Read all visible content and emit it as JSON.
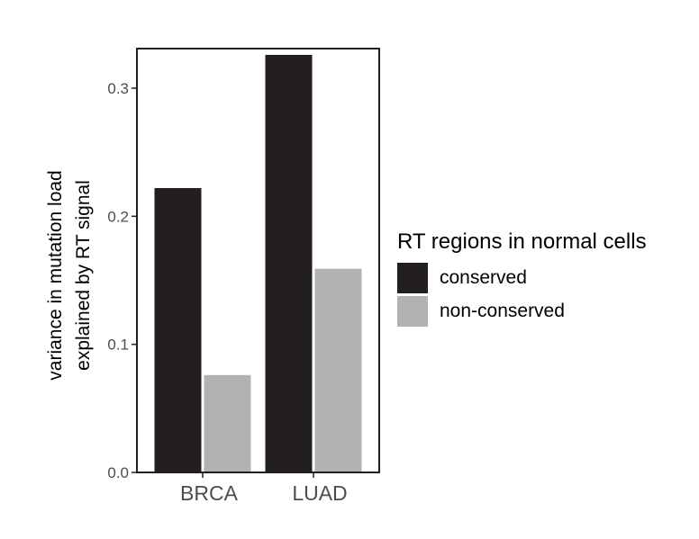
{
  "chart_data": {
    "type": "bar",
    "categories": [
      "BRCA",
      "LUAD"
    ],
    "series": [
      {
        "name": "conserved",
        "values": [
          0.222,
          0.326
        ],
        "color": "#231f20"
      },
      {
        "name": "non-conserved",
        "values": [
          0.076,
          0.159
        ],
        "color": "#b1b3b3"
      }
    ],
    "ylabel_line1": "variance in mutation load",
    "ylabel_line2": "explained by RT signal",
    "xlabel": "",
    "ylim": [
      0,
      0.33
    ],
    "yticks": [
      0.0,
      0.1,
      0.2,
      0.3
    ],
    "ytick_labels": [
      "0.0",
      "0.1",
      "0.2",
      "0.3"
    ],
    "legend": {
      "title": "RT regions in normal cells",
      "position": "right"
    },
    "grid": false
  }
}
